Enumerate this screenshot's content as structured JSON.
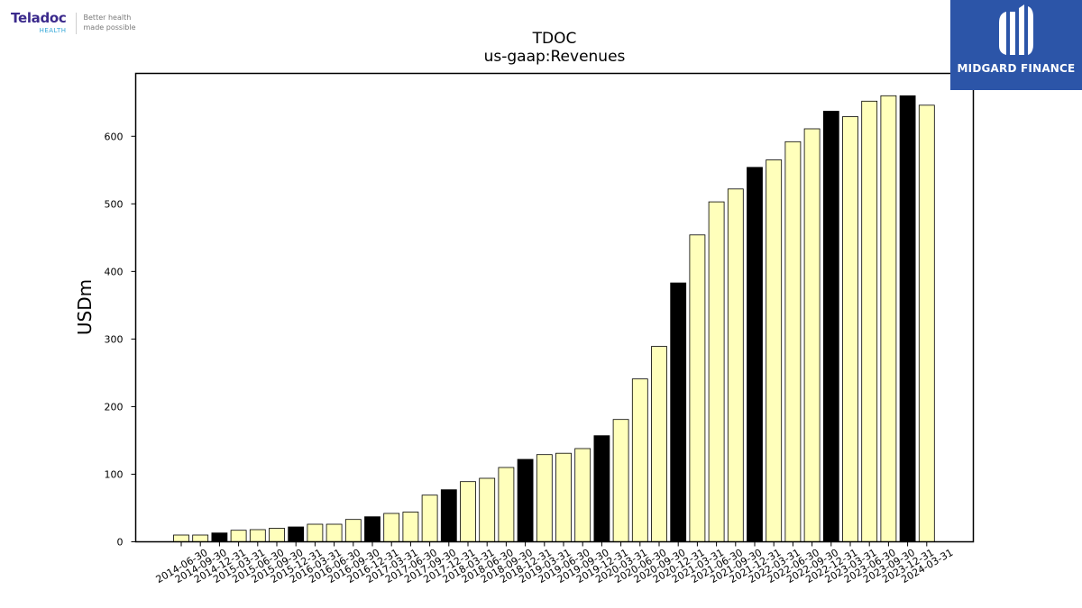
{
  "logos": {
    "left_brand": "Teladoc",
    "left_brand_sub": "HEALTH",
    "left_tagline_1": "Better health",
    "left_tagline_2": "made possible",
    "right_brand": "MIDGARD FINANCE"
  },
  "colors": {
    "bar_default": "#ffffbb",
    "bar_highlight": "#000000",
    "bar_edge": "#000000",
    "logo_right_bg": "#2c55a8"
  },
  "chart_data": {
    "type": "bar",
    "title": "TDOC",
    "subtitle": "us-gaap:Revenues",
    "xlabel": "",
    "ylabel": "USDm",
    "ylim": [
      0,
      693
    ],
    "yticks": [
      0,
      100,
      200,
      300,
      400,
      500,
      600
    ],
    "grid": false,
    "categories": [
      "2014-06-30",
      "2014-09-30",
      "2014-12-31",
      "2015-03-31",
      "2015-06-30",
      "2015-09-30",
      "2015-12-31",
      "2016-03-31",
      "2016-06-30",
      "2016-09-30",
      "2016-12-31",
      "2017-03-31",
      "2017-06-30",
      "2017-09-30",
      "2017-12-31",
      "2018-03-31",
      "2018-06-30",
      "2018-09-30",
      "2018-12-31",
      "2019-03-31",
      "2019-06-30",
      "2019-09-30",
      "2019-12-31",
      "2020-03-31",
      "2020-06-30",
      "2020-09-30",
      "2020-12-31",
      "2021-03-31",
      "2021-06-30",
      "2021-09-30",
      "2021-12-31",
      "2022-03-31",
      "2022-06-30",
      "2022-09-30",
      "2022-12-31",
      "2023-03-31",
      "2023-06-30",
      "2023-09-30",
      "2023-12-31",
      "2024-03-31"
    ],
    "values": [
      10,
      10,
      13,
      17,
      18,
      20,
      22,
      26,
      26,
      33,
      37,
      42,
      44,
      69,
      77,
      89,
      94,
      110,
      122,
      129,
      131,
      138,
      157,
      181,
      241,
      289,
      383,
      454,
      503,
      522,
      554,
      565,
      592,
      611,
      637,
      629,
      652,
      660,
      660,
      646
    ],
    "highlight": [
      false,
      false,
      true,
      false,
      false,
      false,
      true,
      false,
      false,
      false,
      true,
      false,
      false,
      false,
      true,
      false,
      false,
      false,
      true,
      false,
      false,
      false,
      true,
      false,
      false,
      false,
      true,
      false,
      false,
      false,
      true,
      false,
      false,
      false,
      true,
      false,
      false,
      false,
      true,
      false
    ]
  }
}
